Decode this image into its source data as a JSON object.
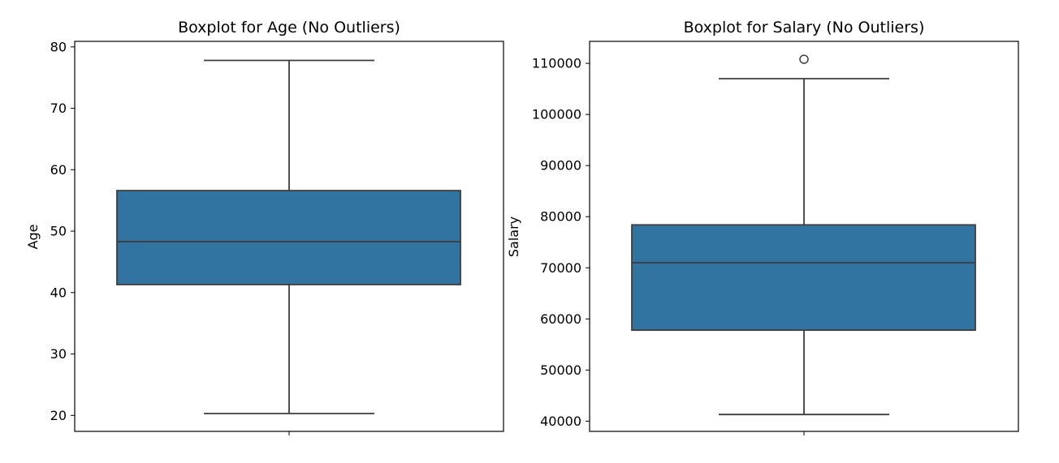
{
  "chart_data": [
    {
      "type": "boxplot",
      "title": "Boxplot for Age (No Outliers)",
      "ylabel": "Age",
      "xlabel": "",
      "ylim": [
        17.4,
        80.9
      ],
      "yticks": [
        20,
        30,
        40,
        50,
        60,
        70,
        80
      ],
      "grid": false,
      "box": {
        "whisker_low": 20.3,
        "q1": 41.3,
        "median": 48.3,
        "q3": 56.6,
        "whisker_high": 77.8,
        "outliers": []
      },
      "colors": {
        "box": "#3274a1",
        "line": "#3d3d3d"
      }
    },
    {
      "type": "boxplot",
      "title": "Boxplot for Salary (No Outliers)",
      "ylabel": "Salary",
      "xlabel": "",
      "ylim": [
        38000,
        114300
      ],
      "yticks": [
        40000,
        50000,
        60000,
        70000,
        80000,
        90000,
        100000,
        110000
      ],
      "grid": false,
      "box": {
        "whisker_low": 41300,
        "q1": 57800,
        "median": 71000,
        "q3": 78400,
        "whisker_high": 107000,
        "outliers": [
          110800
        ]
      },
      "colors": {
        "box": "#3274a1",
        "line": "#3d3d3d"
      }
    }
  ]
}
